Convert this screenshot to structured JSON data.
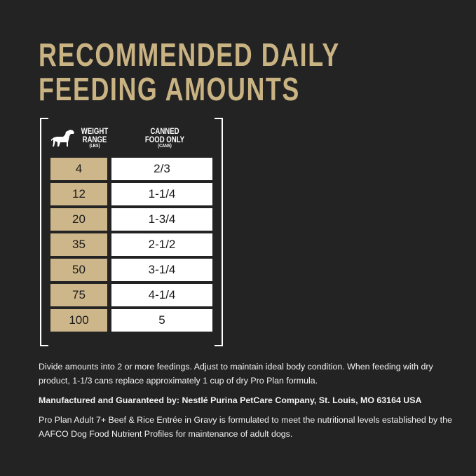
{
  "title": {
    "line1": "RECOMMENDED DAILY",
    "line2": "FEEDING AMOUNTS"
  },
  "colors": {
    "background": "#232323",
    "gold": "#c9b383",
    "cell_gold": "#cdb68a",
    "cell_white": "#ffffff"
  },
  "table": {
    "icon": "dog-icon",
    "col1": {
      "title": "WEIGHT RANGE",
      "title_a": "WEIGHT",
      "title_b": "RANGE",
      "unit": "(LBS)"
    },
    "col2": {
      "title_a": "CANNED",
      "title_b": "FOOD ONLY",
      "unit": "(CANS)"
    },
    "rows": [
      {
        "weight": "4",
        "cans": "2/3"
      },
      {
        "weight": "12",
        "cans": "1-1/4"
      },
      {
        "weight": "20",
        "cans": "1-3/4"
      },
      {
        "weight": "35",
        "cans": "2-1/2"
      },
      {
        "weight": "50",
        "cans": "3-1/4"
      },
      {
        "weight": "75",
        "cans": "4-1/4"
      },
      {
        "weight": "100",
        "cans": "5"
      }
    ]
  },
  "notes": {
    "instructions": "Divide amounts into 2 or more feedings. Adjust to maintain ideal body condition. When feeding with dry product, 1-1/3 cans replace approximately 1 cup of dry Pro Plan formula.",
    "manufacturer": "Manufactured and Guaranteed by: Nestlé Purina PetCare Company, St. Louis, MO 63164 USA",
    "aafco": "Pro Plan Adult 7+ Beef & Rice Entrée in Gravy is formulated to meet the nutritional levels established by the AAFCO Dog Food Nutrient Profiles for maintenance of adult dogs."
  }
}
